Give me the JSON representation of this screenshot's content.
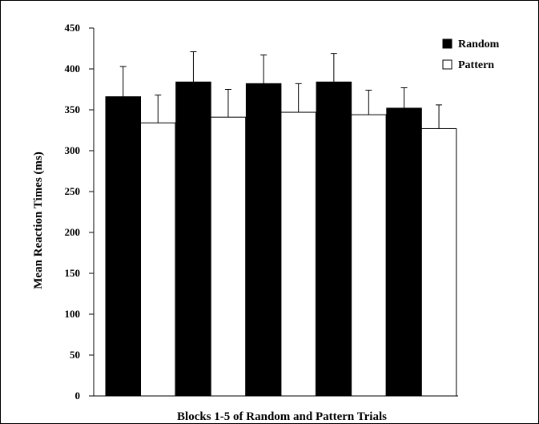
{
  "chart_data": {
    "type": "bar",
    "title": "",
    "xlabel": "Blocks 1-5 of Random and Pattern Trials",
    "ylabel": "Mean Reaction Times (ms)",
    "ylim": [
      0,
      450
    ],
    "yticks": [
      0,
      50,
      100,
      150,
      200,
      250,
      300,
      350,
      400,
      450
    ],
    "grid": false,
    "legend_position": "top-right",
    "categories": [
      "1",
      "2",
      "3",
      "4",
      "5"
    ],
    "series": [
      {
        "name": "Random",
        "color": "#000000",
        "values": [
          366,
          384,
          382,
          384,
          352
        ],
        "error": [
          37,
          37,
          35,
          35,
          25
        ]
      },
      {
        "name": "Pattern",
        "color": "#ffffff",
        "values": [
          334,
          341,
          347,
          344,
          327
        ],
        "error": [
          34,
          34,
          35,
          30,
          29
        ]
      }
    ]
  }
}
